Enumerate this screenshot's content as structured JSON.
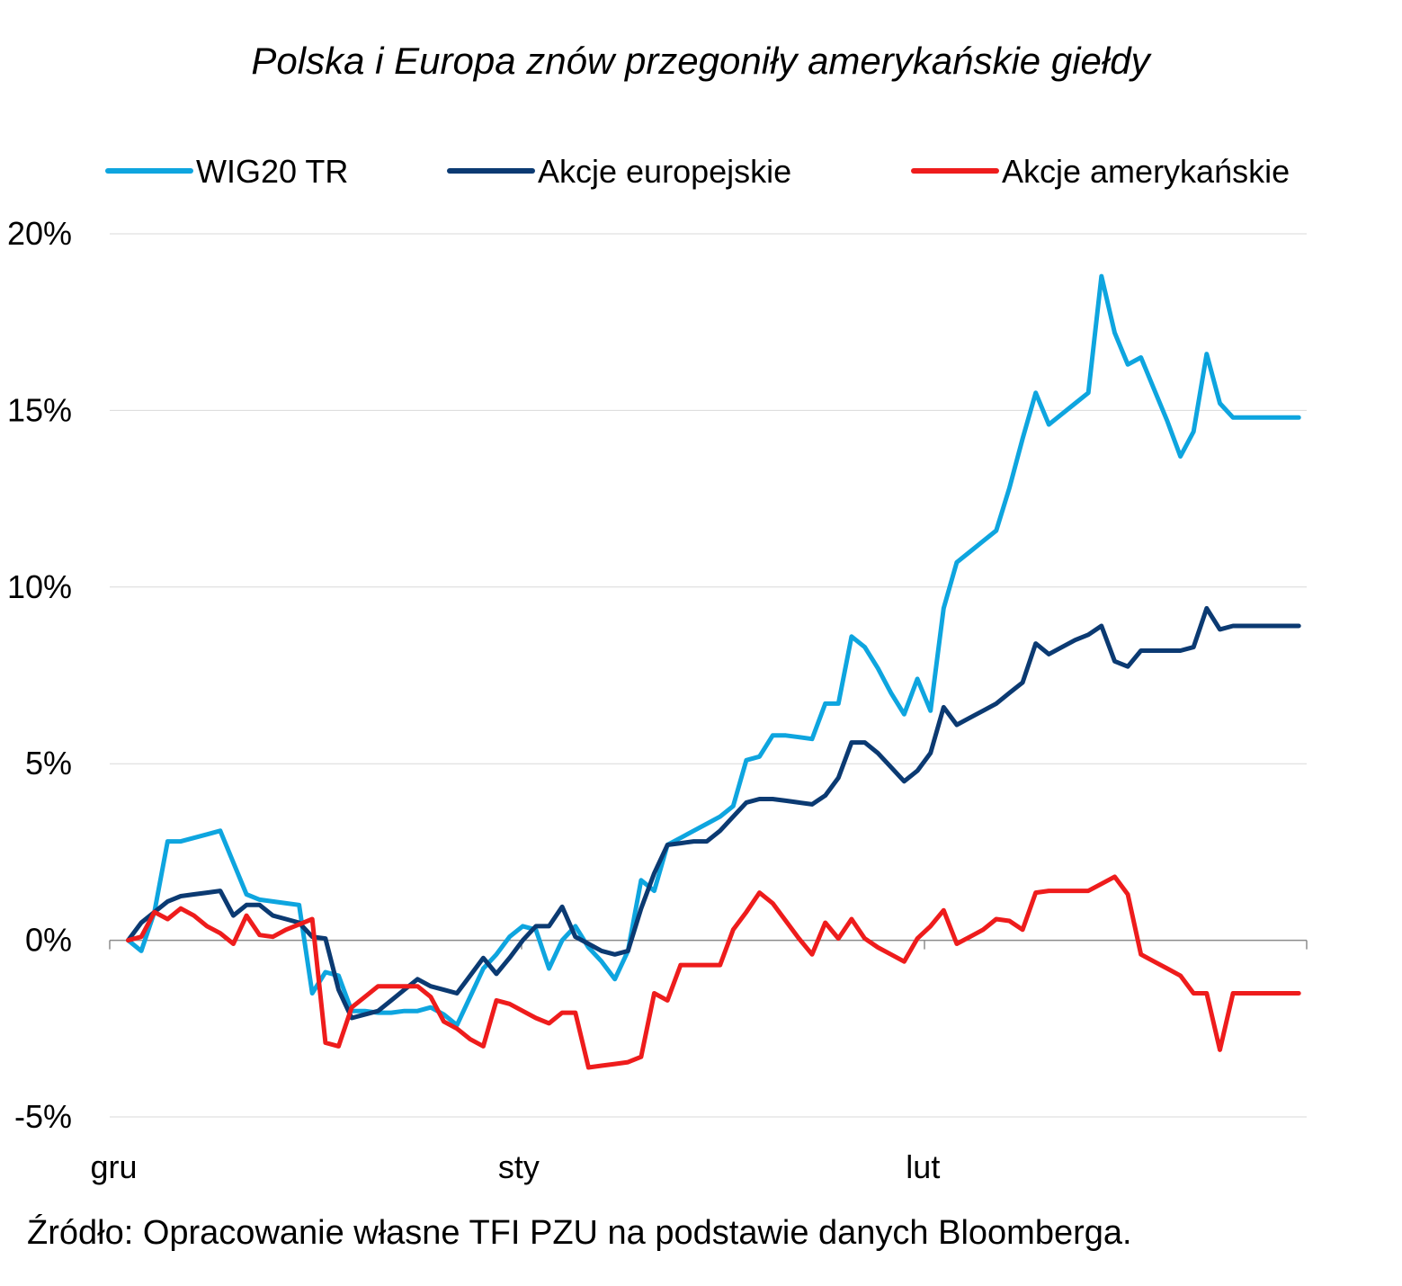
{
  "chart_data": {
    "type": "line",
    "title": "Polska i Europa znów przegoniły amerykańskie giełdy",
    "xlabel": "",
    "ylabel": "",
    "ylim": [
      -5,
      20
    ],
    "y_ticks": [
      "-5%",
      "0%",
      "5%",
      "10%",
      "15%",
      "20%"
    ],
    "y_tick_values": [
      -5,
      0,
      5,
      10,
      15,
      20
    ],
    "x_ticks": [
      "gru",
      "sty",
      "lut"
    ],
    "x_tick_index": [
      0,
      31,
      62
    ],
    "x_range": [
      -1.4,
      89.6
    ],
    "grid": true,
    "legend_position": "top",
    "x": [
      0,
      1,
      2,
      3,
      4,
      5,
      6,
      7,
      8,
      9,
      10,
      11,
      12,
      13,
      14,
      15,
      16,
      17,
      18,
      19,
      20,
      21,
      22,
      23,
      24,
      25,
      26,
      27,
      28,
      29,
      30,
      31,
      32,
      33,
      34,
      35,
      36,
      37,
      38,
      39,
      40,
      41,
      42,
      43,
      44,
      45,
      46,
      47,
      48,
      49,
      50,
      51,
      52,
      53,
      54,
      55,
      56,
      57,
      58,
      59,
      60,
      61,
      62,
      63,
      64,
      65,
      66,
      67,
      68,
      69,
      70,
      71,
      72,
      73,
      74,
      75,
      76,
      77,
      78,
      79,
      80,
      81,
      82,
      83,
      84,
      85,
      86,
      87,
      88,
      89
    ],
    "series": [
      {
        "name": "WIG20 TR",
        "color": "#0ea5df",
        "values": [
          0,
          -0.3,
          0.8,
          2.8,
          2.8,
          2.9,
          3.0,
          3.1,
          2.2,
          1.3,
          1.15,
          1.1,
          1.05,
          1.0,
          -1.5,
          -0.9,
          -1.0,
          -2.0,
          -2.0,
          -2.05,
          -2.05,
          -2.0,
          -2.0,
          -1.9,
          -2.1,
          -2.4,
          -1.6,
          -0.8,
          -0.4,
          0.1,
          0.4,
          0.3,
          -0.8,
          0.0,
          0.4,
          -0.2,
          -0.6,
          -1.1,
          -0.3,
          1.7,
          1.4,
          2.7,
          2.9,
          3.1,
          3.3,
          3.5,
          3.8,
          5.1,
          5.2,
          5.8,
          5.8,
          5.75,
          5.7,
          6.7,
          6.7,
          8.6,
          8.3,
          7.7,
          7.0,
          6.4,
          7.4,
          6.5,
          9.4,
          10.7,
          11.0,
          11.3,
          11.6,
          12.8,
          14.2,
          15.5,
          14.6,
          14.9,
          15.2,
          15.5,
          18.8,
          17.2,
          16.3,
          16.5,
          15.6,
          14.7,
          13.7,
          14.4,
          16.6,
          15.2,
          14.8,
          14.8,
          14.8,
          14.8,
          14.8,
          14.8
        ]
      },
      {
        "name": "Akcje europejskie",
        "color": "#0b3a72",
        "values": [
          0,
          0.5,
          0.8,
          1.1,
          1.25,
          1.3,
          1.35,
          1.4,
          0.7,
          1.0,
          1.0,
          0.7,
          0.6,
          0.5,
          0.1,
          0.05,
          -1.4,
          -2.2,
          -2.1,
          -2.0,
          -1.7,
          -1.4,
          -1.1,
          -1.3,
          -1.4,
          -1.5,
          -1.0,
          -0.5,
          -0.95,
          -0.5,
          0.0,
          0.4,
          0.4,
          0.95,
          0.1,
          -0.1,
          -0.3,
          -0.4,
          -0.3,
          0.9,
          1.9,
          2.7,
          2.75,
          2.8,
          2.8,
          3.1,
          3.5,
          3.9,
          4.0,
          4.0,
          3.95,
          3.9,
          3.85,
          4.1,
          4.6,
          5.6,
          5.6,
          5.3,
          4.9,
          4.5,
          4.8,
          5.3,
          6.6,
          6.1,
          6.3,
          6.5,
          6.7,
          7.0,
          7.3,
          8.4,
          8.1,
          8.3,
          8.5,
          8.65,
          8.9,
          7.9,
          7.75,
          8.2,
          8.2,
          8.2,
          8.2,
          8.3,
          9.4,
          8.8,
          8.9,
          8.9,
          8.9,
          8.9,
          8.9,
          8.9
        ]
      },
      {
        "name": "Akcje amerykańskie",
        "color": "#ee1c1c",
        "values": [
          0,
          0.1,
          0.8,
          0.6,
          0.9,
          0.7,
          0.4,
          0.2,
          -0.1,
          0.7,
          0.15,
          0.1,
          0.3,
          0.45,
          0.6,
          -2.9,
          -3.0,
          -1.9,
          -1.6,
          -1.3,
          -1.3,
          -1.3,
          -1.3,
          -1.6,
          -2.3,
          -2.5,
          -2.8,
          -3.0,
          -1.7,
          -1.8,
          -2.0,
          -2.2,
          -2.35,
          -2.05,
          -2.05,
          -3.6,
          -3.55,
          -3.5,
          -3.45,
          -3.3,
          -1.5,
          -1.7,
          -0.7,
          -0.7,
          -0.7,
          -0.7,
          0.3,
          0.8,
          1.35,
          1.05,
          0.55,
          0.05,
          -0.4,
          0.5,
          0.05,
          0.6,
          0.05,
          -0.2,
          -0.4,
          -0.6,
          0.05,
          0.4,
          0.85,
          -0.1,
          0.1,
          0.3,
          0.6,
          0.55,
          0.3,
          1.35,
          1.4,
          1.4,
          1.4,
          1.4,
          1.6,
          1.8,
          1.3,
          -0.4,
          -0.6,
          -0.8,
          -1.0,
          -1.5,
          -1.5,
          -3.1,
          -1.5,
          -1.5,
          -1.5,
          -1.5,
          -1.5,
          -1.5
        ]
      }
    ],
    "source": "Źródło: Opracowanie własne TFI PZU na podstawie danych Bloomberga."
  }
}
